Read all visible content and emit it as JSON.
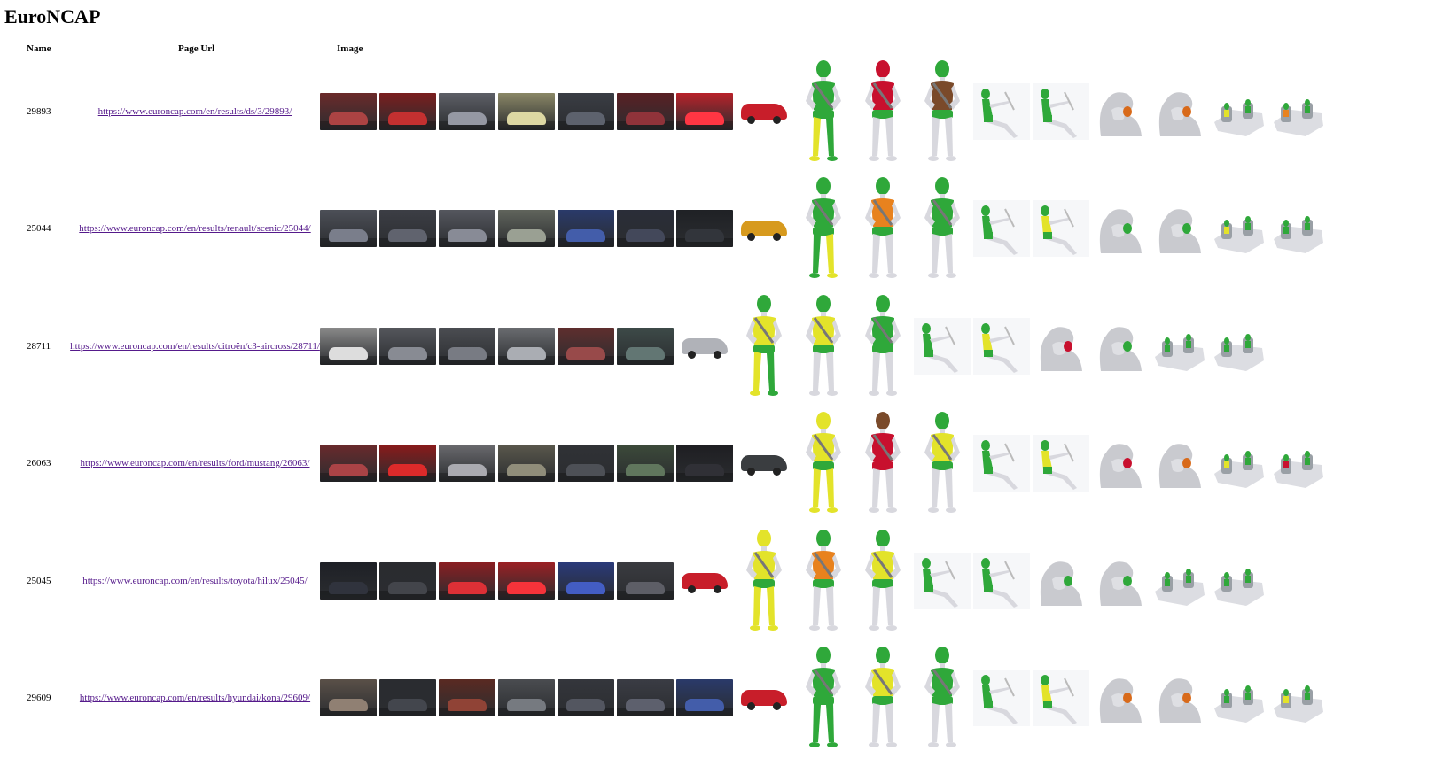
{
  "page": {
    "title": "EuroNCAP"
  },
  "table": {
    "headers": {
      "name": "Name",
      "url": "Page Url",
      "image": "Image"
    },
    "rows": [
      {
        "name": "29893",
        "url": "https://www.euroncap.com/en/results/ds/3/29893/",
        "photos": [
          "#6b2a2a",
          "#7a1e1e",
          "#5d5f66",
          "#8a8766",
          "#3a3d44",
          "#5a2024",
          "#b8222a"
        ],
        "profile_color": "#c81e2a",
        "dummies": [
          {
            "head": "#2fa83a",
            "torso": "#2fa83a",
            "pelvis": "#2fa83a",
            "leftLeg": "#e3e32a",
            "rightLeg": "#2fa83a"
          },
          {
            "head": "#c8102e",
            "torso": "#c8102e",
            "pelvis": "#2fa83a",
            "leftLeg": "#d8d8de",
            "rightLeg": "#d8d8de"
          },
          {
            "head": "#2fa83a",
            "torso": "#7a4a2a",
            "pelvis": "#2fa83a",
            "leftLeg": "#d8d8de",
            "rightLeg": "#d8d8de"
          }
        ],
        "seated": [
          "green",
          "green"
        ],
        "headrests": [
          "#d86a1a",
          "#d86a1a"
        ],
        "childseats": [
          "yellow",
          "orange"
        ]
      },
      {
        "name": "25044",
        "url": "https://www.euroncap.com/en/results/renault/scenic/25044/",
        "photos": [
          "#4c4f57",
          "#3c3e45",
          "#55575e",
          "#60645c",
          "#2a3a6a",
          "#2a2d38",
          "#1f2125"
        ],
        "profile_color": "#d79a1e",
        "dummies": [
          {
            "head": "#2fa83a",
            "torso": "#2fa83a",
            "pelvis": "#2fa83a",
            "leftLeg": "#2fa83a",
            "rightLeg": "#e3e32a"
          },
          {
            "head": "#2fa83a",
            "torso": "#e8821e",
            "pelvis": "#2fa83a",
            "leftLeg": "#d8d8de",
            "rightLeg": "#d8d8de"
          },
          {
            "head": "#2fa83a",
            "torso": "#2fa83a",
            "pelvis": "#2fa83a",
            "leftLeg": "#d8d8de",
            "rightLeg": "#d8d8de"
          }
        ],
        "seated": [
          "green",
          "yellow"
        ],
        "headrests": [
          "#2fa83a",
          "#2fa83a"
        ],
        "childseats": [
          "yellow",
          "green"
        ]
      },
      {
        "name": "28711",
        "url": "https://www.euroncap.com/en/results/citroën/c3-aircross/28711/",
        "photos": [
          "#8a8a8a",
          "#55575c",
          "#4b4d52",
          "#6a6c70",
          "#5f2e2e",
          "#3d4a48"
        ],
        "profile_color": "#b0b2b8",
        "dummies": [
          {
            "head": "#2fa83a",
            "torso": "#e3e32a",
            "pelvis": "#2fa83a",
            "leftLeg": "#e3e32a",
            "rightLeg": "#2fa83a"
          },
          {
            "head": "#2fa83a",
            "torso": "#e3e32a",
            "pelvis": "#2fa83a",
            "leftLeg": "#d8d8de",
            "rightLeg": "#d8d8de"
          },
          {
            "head": "#2fa83a",
            "torso": "#2fa83a",
            "pelvis": "#2fa83a",
            "leftLeg": "#d8d8de",
            "rightLeg": "#d8d8de"
          }
        ],
        "seated": [
          "green",
          "yellow"
        ],
        "headrests": [
          "#c8102e",
          "#2fa83a"
        ],
        "childseats": [
          "green",
          "green"
        ]
      },
      {
        "name": "26063",
        "url": "https://www.euroncap.com/en/results/ford/mustang/26063/",
        "photos": [
          "#6a2a2c",
          "#8a1a1a",
          "#6a6a6e",
          "#5a584c",
          "#303236",
          "#3c4a3a",
          "#1e1e22"
        ],
        "profile_color": "#3a3d40",
        "dummies": [
          {
            "head": "#e3e32a",
            "torso": "#e3e32a",
            "pelvis": "#2fa83a",
            "leftLeg": "#e3e32a",
            "rightLeg": "#e3e32a"
          },
          {
            "head": "#7a4a2a",
            "torso": "#c8102e",
            "pelvis": "#c8102e",
            "leftLeg": "#d8d8de",
            "rightLeg": "#d8d8de"
          },
          {
            "head": "#2fa83a",
            "torso": "#e3e32a",
            "pelvis": "#2fa83a",
            "leftLeg": "#d8d8de",
            "rightLeg": "#d8d8de"
          }
        ],
        "seated": [
          "green",
          "yellow"
        ],
        "headrests": [
          "#c8102e",
          "#d86a1a"
        ],
        "childseats": [
          "yellow",
          "red"
        ]
      },
      {
        "name": "25045",
        "url": "https://www.euroncap.com/en/results/toyota/hilux/25045/",
        "photos": [
          "#1e2026",
          "#2a2b2f",
          "#8a1e22",
          "#9a2024",
          "#2a3a7a",
          "#3a3b40"
        ],
        "profile_color": "#c81e2a",
        "dummies": [
          {
            "head": "#e3e32a",
            "torso": "#e3e32a",
            "pelvis": "#2fa83a",
            "leftLeg": "#e3e32a",
            "rightLeg": "#e3e32a"
          },
          {
            "head": "#2fa83a",
            "torso": "#e8821e",
            "pelvis": "#2fa83a",
            "leftLeg": "#d8d8de",
            "rightLeg": "#d8d8de"
          },
          {
            "head": "#2fa83a",
            "torso": "#e3e32a",
            "pelvis": "#2fa83a",
            "leftLeg": "#d8d8de",
            "rightLeg": "#d8d8de"
          }
        ],
        "seated": [
          "green",
          "green"
        ],
        "headrests": [
          "#2fa83a",
          "#2fa83a"
        ],
        "childseats": [
          "green",
          "green"
        ]
      },
      {
        "name": "29609",
        "url": "https://www.euroncap.com/en/results/hyundai/kona/29609/",
        "photos": [
          "#5a5048",
          "#2a2c30",
          "#5a2a22",
          "#4a4c50",
          "#34363c",
          "#3a3c44",
          "#2a3a6a"
        ],
        "profile_color": "#c81e2a",
        "dummies": [
          {
            "head": "#2fa83a",
            "torso": "#2fa83a",
            "pelvis": "#2fa83a",
            "leftLeg": "#2fa83a",
            "rightLeg": "#2fa83a"
          },
          {
            "head": "#2fa83a",
            "torso": "#e3e32a",
            "pelvis": "#2fa83a",
            "leftLeg": "#d8d8de",
            "rightLeg": "#d8d8de"
          },
          {
            "head": "#2fa83a",
            "torso": "#2fa83a",
            "pelvis": "#2fa83a",
            "leftLeg": "#d8d8de",
            "rightLeg": "#d8d8de"
          }
        ],
        "seated": [
          "green",
          "yellow"
        ],
        "headrests": [
          "#d86a1a",
          "#d86a1a"
        ],
        "childseats": [
          "green",
          "yellow"
        ]
      }
    ]
  }
}
